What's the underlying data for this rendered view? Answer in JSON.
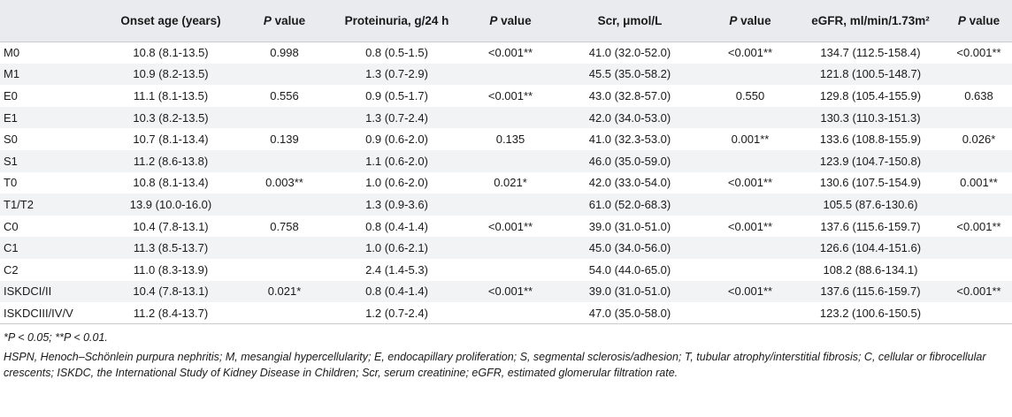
{
  "table": {
    "headers": [
      "",
      "Onset age (years)",
      "P value",
      "Proteinuria, g/24 h",
      "P value",
      "Scr, μmol/L",
      "P value",
      "eGFR, ml/min/1.73m²",
      "P value"
    ],
    "rows": [
      [
        "M0",
        "10.8 (8.1-13.5)",
        "0.998",
        "0.8 (0.5-1.5)",
        "<0.001**",
        "41.0 (32.0-52.0)",
        "<0.001**",
        "134.7 (112.5-158.4)",
        "<0.001**"
      ],
      [
        "M1",
        "10.9 (8.2-13.5)",
        "",
        "1.3 (0.7-2.9)",
        "",
        "45.5 (35.0-58.2)",
        "",
        "121.8 (100.5-148.7)",
        ""
      ],
      [
        "E0",
        "11.1 (8.1-13.5)",
        "0.556",
        "0.9 (0.5-1.7)",
        "<0.001**",
        "43.0 (32.8-57.0)",
        "0.550",
        "129.8 (105.4-155.9)",
        "0.638"
      ],
      [
        "E1",
        "10.3 (8.2-13.5)",
        "",
        "1.3 (0.7-2.4)",
        "",
        "42.0 (34.0-53.0)",
        "",
        "130.3 (110.3-151.3)",
        ""
      ],
      [
        "S0",
        "10.7 (8.1-13.4)",
        "0.139",
        "0.9 (0.6-2.0)",
        "0.135",
        "41.0 (32.3-53.0)",
        "0.001**",
        "133.6 (108.8-155.9)",
        "0.026*"
      ],
      [
        "S1",
        "11.2 (8.6-13.8)",
        "",
        "1.1 (0.6-2.0)",
        "",
        "46.0 (35.0-59.0)",
        "",
        "123.9 (104.7-150.8)",
        ""
      ],
      [
        "T0",
        "10.8 (8.1-13.4)",
        "0.003**",
        "1.0 (0.6-2.0)",
        "0.021*",
        "42.0 (33.0-54.0)",
        "<0.001**",
        "130.6 (107.5-154.9)",
        "0.001**"
      ],
      [
        "T1/T2",
        "13.9 (10.0-16.0)",
        "",
        "1.3 (0.9-3.6)",
        "",
        "61.0 (52.0-68.3)",
        "",
        "105.5 (87.6-130.6)",
        ""
      ],
      [
        "C0",
        "10.4 (7.8-13.1)",
        "0.758",
        "0.8 (0.4-1.4)",
        "<0.001**",
        "39.0 (31.0-51.0)",
        "<0.001**",
        "137.6 (115.6-159.7)",
        "<0.001**"
      ],
      [
        "C1",
        "11.3 (8.5-13.7)",
        "",
        "1.0 (0.6-2.1)",
        "",
        "45.0 (34.0-56.0)",
        "",
        "126.6 (104.4-151.6)",
        ""
      ],
      [
        "C2",
        "11.0 (8.3-13.9)",
        "",
        "2.4 (1.4-5.3)",
        "",
        "54.0 (44.0-65.0)",
        "",
        "108.2 (88.6-134.1)",
        ""
      ],
      [
        "ISKDCI/II",
        "10.4 (7.8-13.1)",
        "0.021*",
        "0.8 (0.4-1.4)",
        "<0.001**",
        "39.0 (31.0-51.0)",
        "<0.001**",
        "137.6 (115.6-159.7)",
        "<0.001**"
      ],
      [
        "ISKDCIII/IV/V",
        "11.2 (8.4-13.7)",
        "",
        "1.2 (0.7-2.4)",
        "",
        "47.0 (35.0-58.0)",
        "",
        "123.2 (100.6-150.5)",
        ""
      ]
    ]
  },
  "footnotes": {
    "significance": "*P < 0.05; **P < 0.01.",
    "abbreviations": "HSPN, Henoch–Schönlein purpura nephritis; M, mesangial hypercellularity; E, endocapillary proliferation; S, segmental sclerosis/adhesion; T, tubular atrophy/interstitial fibrosis; C, cellular or fibrocellular crescents; ISKDC, the International Study of Kidney Disease in Children; Scr, serum creatinine; eGFR, estimated glomerular filtration rate."
  }
}
